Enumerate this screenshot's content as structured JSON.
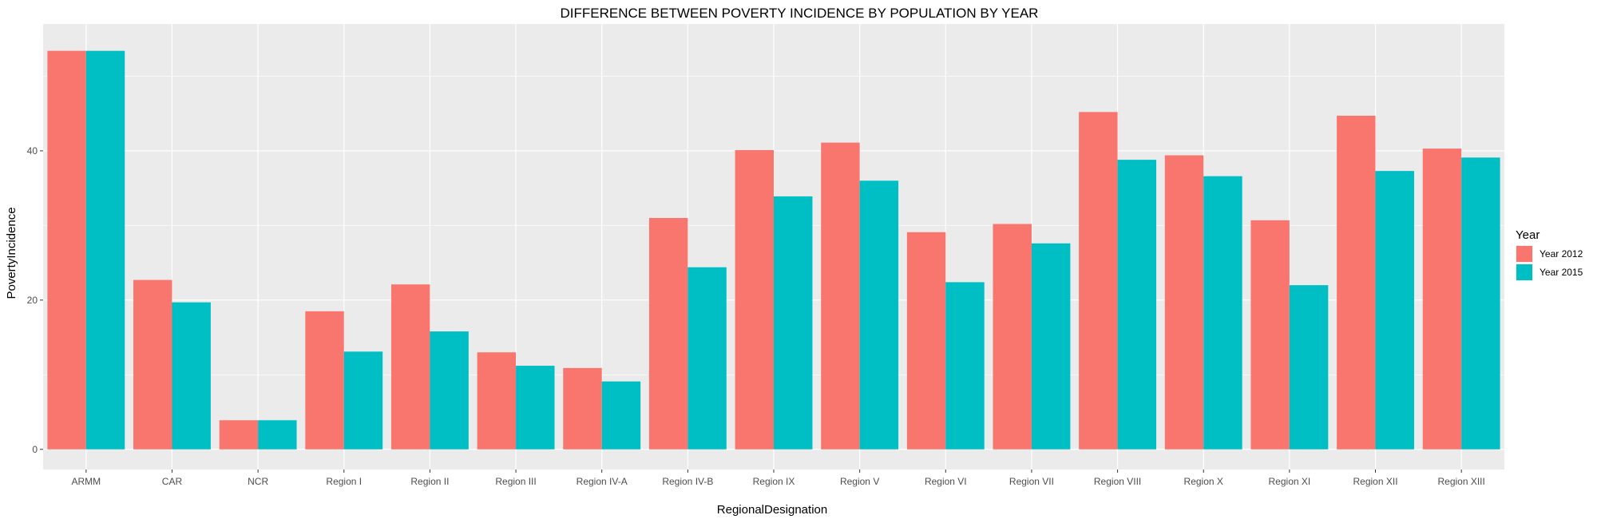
{
  "chart_data": {
    "type": "bar",
    "title": "DIFFERENCE BETWEEN POVERTY INCIDENCE BY POPULATION BY YEAR",
    "xlabel": "RegionalDesignation",
    "ylabel": "PovertyIncidence",
    "categories": [
      "ARMM",
      "CAR",
      "NCR",
      "Region I",
      "Region II",
      "Region III",
      "Region IV-A",
      "Region IV-B",
      "Region IX",
      "Region V",
      "Region VI",
      "Region VII",
      "Region VIII",
      "Region X",
      "Region XI",
      "Region XII",
      "Region XIII"
    ],
    "series": [
      {
        "name": "Year 2012",
        "color": "#F8766D",
        "values": [
          53.4,
          22.7,
          3.9,
          18.5,
          22.1,
          13.0,
          10.9,
          31.0,
          40.1,
          41.1,
          29.1,
          30.2,
          45.2,
          39.4,
          30.7,
          44.7,
          40.3
        ]
      },
      {
        "name": "Year 2015",
        "color": "#00BFC4",
        "values": [
          53.4,
          19.7,
          3.9,
          13.1,
          15.8,
          11.2,
          9.1,
          24.4,
          33.9,
          36.0,
          22.4,
          27.6,
          38.8,
          36.6,
          22.0,
          37.3,
          39.1
        ]
      }
    ],
    "yticks": [
      0,
      20,
      40
    ],
    "ylim": [
      -2.7,
      57
    ],
    "grid": true,
    "legend": {
      "title": "Year",
      "position": "right"
    },
    "colors": {
      "panel": "#EBEBEB",
      "grid": "#FFFFFF"
    }
  }
}
